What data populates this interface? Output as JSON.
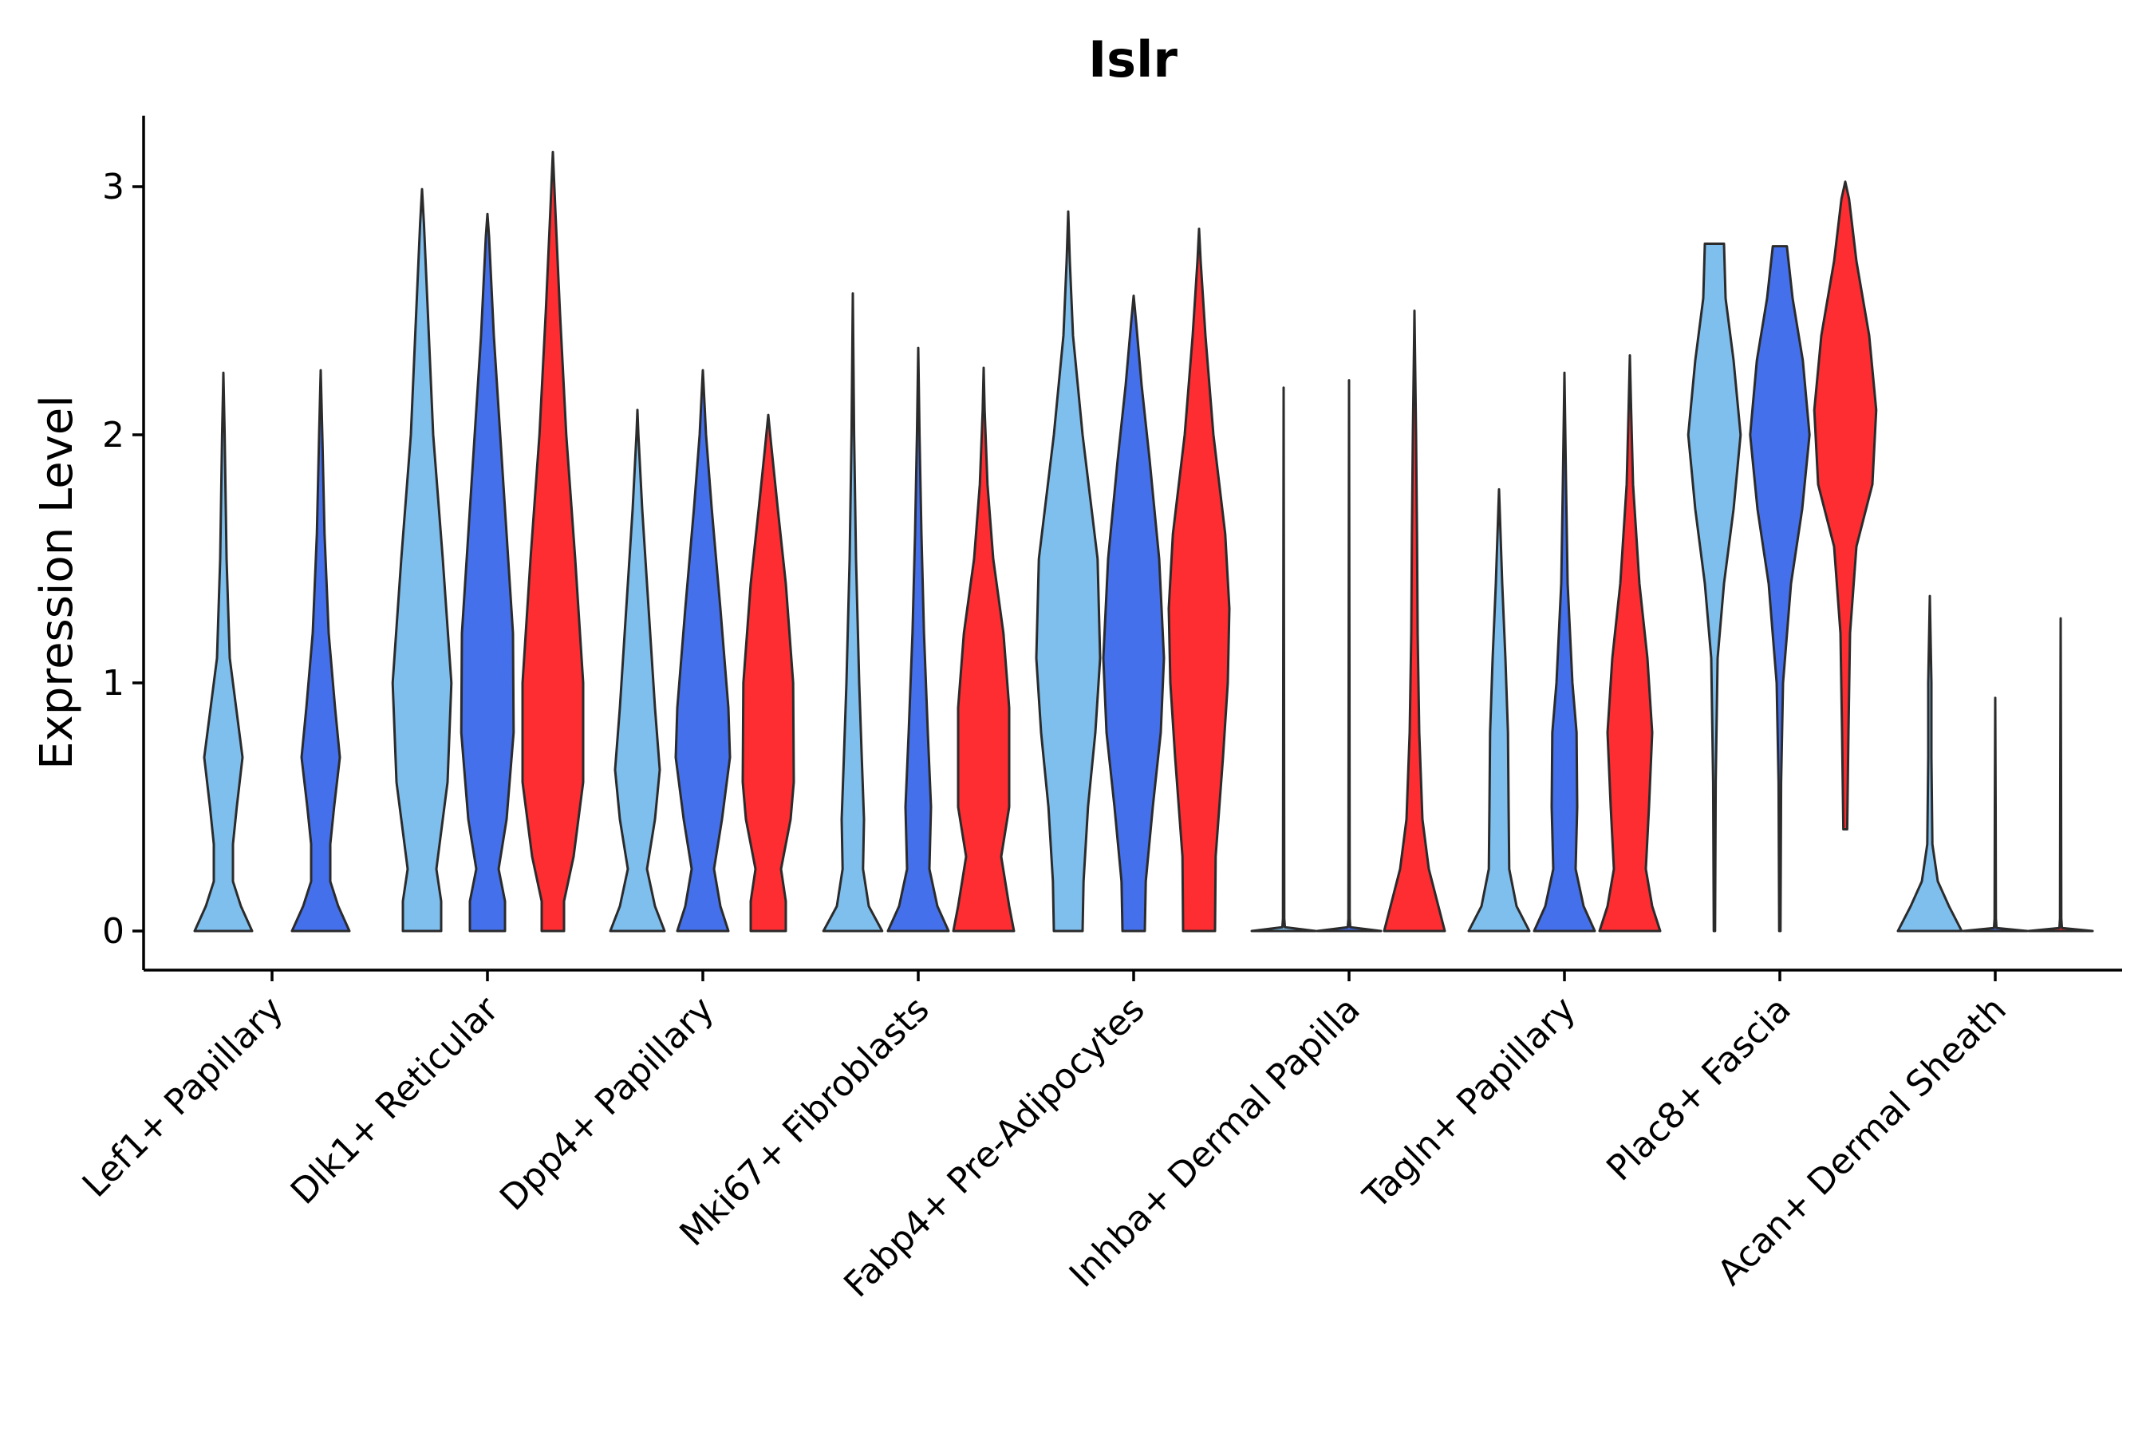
{
  "chart_data": {
    "type": "violin",
    "title": "Islr",
    "xlabel": "",
    "ylabel": "Expression Level",
    "ylim": [
      -0.16,
      3.3
    ],
    "yticks": [
      0,
      1,
      2,
      3
    ],
    "colors": {
      "group1": "#7fbfee",
      "group2": "#4570ec",
      "group3": "#fd2d32"
    },
    "categories": [
      "Lef1+ Papillary",
      "Dlk1+ Reticular",
      "Dpp4+ Papillary",
      "Mki67+ Fibroblasts",
      "Fabp4+ Pre-Adipocytes",
      "Inhba+ Dermal Papilla",
      "Tagln+ Papillary",
      "Plac8+ Fascia",
      "Acan+ Dermal Sheath"
    ],
    "violins": [
      {
        "category": "Lef1+ Papillary",
        "group": "group1",
        "min": 0,
        "max": 2.25,
        "profile": [
          [
            0,
            0.9
          ],
          [
            0.1,
            0.55
          ],
          [
            0.2,
            0.3
          ],
          [
            0.35,
            0.3
          ],
          [
            0.5,
            0.42
          ],
          [
            0.7,
            0.6
          ],
          [
            0.9,
            0.4
          ],
          [
            1.1,
            0.2
          ],
          [
            1.5,
            0.1
          ],
          [
            2.0,
            0.04
          ],
          [
            2.25,
            0
          ]
        ]
      },
      {
        "category": "Lef1+ Papillary",
        "group": "group2",
        "min": 0,
        "max": 2.26,
        "profile": [
          [
            0,
            0.9
          ],
          [
            0.1,
            0.55
          ],
          [
            0.2,
            0.3
          ],
          [
            0.35,
            0.3
          ],
          [
            0.5,
            0.42
          ],
          [
            0.7,
            0.6
          ],
          [
            0.9,
            0.45
          ],
          [
            1.2,
            0.25
          ],
          [
            1.6,
            0.12
          ],
          [
            2.0,
            0.05
          ],
          [
            2.26,
            0
          ]
        ]
      },
      {
        "category": "Dlk1+ Reticular",
        "group": "group1",
        "min": 0,
        "max": 2.99,
        "profile": [
          [
            0,
            0.6
          ],
          [
            0.12,
            0.6
          ],
          [
            0.25,
            0.45
          ],
          [
            0.4,
            0.6
          ],
          [
            0.6,
            0.8
          ],
          [
            1.0,
            0.92
          ],
          [
            1.5,
            0.65
          ],
          [
            2.0,
            0.35
          ],
          [
            2.5,
            0.18
          ],
          [
            2.85,
            0.06
          ],
          [
            2.99,
            0
          ]
        ]
      },
      {
        "category": "Dlk1+ Reticular",
        "group": "group2",
        "min": 0,
        "max": 2.89,
        "profile": [
          [
            0,
            0.55
          ],
          [
            0.12,
            0.55
          ],
          [
            0.25,
            0.35
          ],
          [
            0.45,
            0.6
          ],
          [
            0.8,
            0.82
          ],
          [
            1.2,
            0.8
          ],
          [
            1.6,
            0.6
          ],
          [
            2.0,
            0.4
          ],
          [
            2.4,
            0.2
          ],
          [
            2.8,
            0.05
          ],
          [
            2.89,
            0
          ]
        ]
      },
      {
        "category": "Dlk1+ Reticular",
        "group": "group3",
        "min": 0,
        "max": 3.14,
        "profile": [
          [
            0,
            0.35
          ],
          [
            0.12,
            0.35
          ],
          [
            0.3,
            0.65
          ],
          [
            0.6,
            0.95
          ],
          [
            1.0,
            0.95
          ],
          [
            1.5,
            0.7
          ],
          [
            2.0,
            0.42
          ],
          [
            2.5,
            0.22
          ],
          [
            2.9,
            0.08
          ],
          [
            3.14,
            0
          ]
        ]
      },
      {
        "category": "Dpp4+ Papillary",
        "group": "group1",
        "min": 0,
        "max": 2.1,
        "profile": [
          [
            0,
            0.85
          ],
          [
            0.1,
            0.55
          ],
          [
            0.25,
            0.3
          ],
          [
            0.45,
            0.55
          ],
          [
            0.65,
            0.7
          ],
          [
            0.9,
            0.55
          ],
          [
            1.3,
            0.35
          ],
          [
            1.7,
            0.15
          ],
          [
            2.0,
            0.03
          ],
          [
            2.1,
            0
          ]
        ]
      },
      {
        "category": "Dpp4+ Papillary",
        "group": "group2",
        "min": 0,
        "max": 2.26,
        "profile": [
          [
            0,
            0.8
          ],
          [
            0.1,
            0.55
          ],
          [
            0.25,
            0.35
          ],
          [
            0.45,
            0.6
          ],
          [
            0.7,
            0.85
          ],
          [
            0.9,
            0.8
          ],
          [
            1.3,
            0.55
          ],
          [
            1.7,
            0.28
          ],
          [
            2.0,
            0.1
          ],
          [
            2.26,
            0
          ]
        ]
      },
      {
        "category": "Dpp4+ Papillary",
        "group": "group3",
        "min": 0,
        "max": 2.08,
        "profile": [
          [
            0,
            0.55
          ],
          [
            0.12,
            0.55
          ],
          [
            0.25,
            0.4
          ],
          [
            0.45,
            0.7
          ],
          [
            0.6,
            0.8
          ],
          [
            1.0,
            0.78
          ],
          [
            1.4,
            0.55
          ],
          [
            1.7,
            0.3
          ],
          [
            1.95,
            0.1
          ],
          [
            2.08,
            0
          ]
        ]
      },
      {
        "category": "Mki67+ Fibroblasts",
        "group": "group1",
        "min": 0,
        "max": 2.57,
        "profile": [
          [
            0,
            0.92
          ],
          [
            0.1,
            0.5
          ],
          [
            0.25,
            0.32
          ],
          [
            0.45,
            0.35
          ],
          [
            0.7,
            0.28
          ],
          [
            1.0,
            0.2
          ],
          [
            1.5,
            0.1
          ],
          [
            2.0,
            0.04
          ],
          [
            2.57,
            0
          ]
        ]
      },
      {
        "category": "Mki67+ Fibroblasts",
        "group": "group2",
        "min": 0,
        "max": 2.35,
        "profile": [
          [
            0,
            0.95
          ],
          [
            0.1,
            0.6
          ],
          [
            0.25,
            0.35
          ],
          [
            0.5,
            0.4
          ],
          [
            0.8,
            0.3
          ],
          [
            1.2,
            0.18
          ],
          [
            1.6,
            0.1
          ],
          [
            2.0,
            0.04
          ],
          [
            2.35,
            0
          ]
        ]
      },
      {
        "category": "Mki67+ Fibroblasts",
        "group": "group3",
        "min": 0,
        "max": 2.27,
        "profile": [
          [
            0,
            0.95
          ],
          [
            0.1,
            0.8
          ],
          [
            0.3,
            0.55
          ],
          [
            0.5,
            0.8
          ],
          [
            0.9,
            0.8
          ],
          [
            1.2,
            0.62
          ],
          [
            1.5,
            0.3
          ],
          [
            1.8,
            0.12
          ],
          [
            2.1,
            0.03
          ],
          [
            2.27,
            0
          ]
        ]
      },
      {
        "category": "Fabp4+ Pre-Adipocytes",
        "group": "group1",
        "min": 0,
        "max": 2.9,
        "profile": [
          [
            0,
            0.45
          ],
          [
            0.2,
            0.48
          ],
          [
            0.5,
            0.62
          ],
          [
            0.8,
            0.85
          ],
          [
            1.1,
            1.0
          ],
          [
            1.5,
            0.92
          ],
          [
            2.0,
            0.45
          ],
          [
            2.4,
            0.15
          ],
          [
            2.7,
            0.05
          ],
          [
            2.9,
            0
          ]
        ]
      },
      {
        "category": "Fabp4+ Pre-Adipocytes",
        "group": "group2",
        "min": 0,
        "max": 2.56,
        "profile": [
          [
            0,
            0.35
          ],
          [
            0.2,
            0.38
          ],
          [
            0.5,
            0.6
          ],
          [
            0.8,
            0.85
          ],
          [
            1.1,
            0.95
          ],
          [
            1.5,
            0.8
          ],
          [
            1.9,
            0.5
          ],
          [
            2.2,
            0.25
          ],
          [
            2.45,
            0.08
          ],
          [
            2.56,
            0
          ]
        ]
      },
      {
        "category": "Fabp4+ Pre-Adipocytes",
        "group": "group3",
        "min": 0,
        "max": 2.83,
        "profile": [
          [
            0,
            0.5
          ],
          [
            0.3,
            0.52
          ],
          [
            0.7,
            0.75
          ],
          [
            1.0,
            0.9
          ],
          [
            1.3,
            0.95
          ],
          [
            1.6,
            0.82
          ],
          [
            2.0,
            0.45
          ],
          [
            2.4,
            0.2
          ],
          [
            2.7,
            0.05
          ],
          [
            2.83,
            0
          ]
        ]
      },
      {
        "category": "Inhba+ Dermal Papilla",
        "group": "group1",
        "min": 0,
        "max": 2.19,
        "profile": [
          [
            0,
            1.0
          ],
          [
            0.015,
            0.04
          ],
          [
            0.05,
            0.02
          ],
          [
            1.0,
            0.012
          ],
          [
            2.19,
            0
          ]
        ]
      },
      {
        "category": "Inhba+ Dermal Papilla",
        "group": "group2",
        "min": 0,
        "max": 2.22,
        "profile": [
          [
            0,
            1.0
          ],
          [
            0.015,
            0.04
          ],
          [
            0.05,
            0.02
          ],
          [
            1.0,
            0.012
          ],
          [
            2.22,
            0
          ]
        ]
      },
      {
        "category": "Inhba+ Dermal Papilla",
        "group": "group3",
        "min": 0,
        "max": 2.5,
        "profile": [
          [
            0,
            0.95
          ],
          [
            0.1,
            0.75
          ],
          [
            0.25,
            0.45
          ],
          [
            0.45,
            0.25
          ],
          [
            0.8,
            0.15
          ],
          [
            1.2,
            0.1
          ],
          [
            1.6,
            0.08
          ],
          [
            2.0,
            0.05
          ],
          [
            2.5,
            0
          ]
        ]
      },
      {
        "category": "Tagln+ Papillary",
        "group": "group1",
        "min": 0,
        "max": 1.78,
        "profile": [
          [
            0,
            0.95
          ],
          [
            0.1,
            0.55
          ],
          [
            0.25,
            0.32
          ],
          [
            0.5,
            0.3
          ],
          [
            0.8,
            0.28
          ],
          [
            1.1,
            0.2
          ],
          [
            1.4,
            0.1
          ],
          [
            1.78,
            0
          ]
        ]
      },
      {
        "category": "Tagln+ Papillary",
        "group": "group2",
        "min": 0,
        "max": 2.25,
        "profile": [
          [
            0,
            0.95
          ],
          [
            0.1,
            0.6
          ],
          [
            0.25,
            0.35
          ],
          [
            0.5,
            0.4
          ],
          [
            0.8,
            0.38
          ],
          [
            1.0,
            0.25
          ],
          [
            1.4,
            0.1
          ],
          [
            1.8,
            0.05
          ],
          [
            2.25,
            0
          ]
        ]
      },
      {
        "category": "Tagln+ Papillary",
        "group": "group3",
        "min": 0,
        "max": 2.32,
        "profile": [
          [
            0,
            0.95
          ],
          [
            0.1,
            0.7
          ],
          [
            0.25,
            0.5
          ],
          [
            0.5,
            0.6
          ],
          [
            0.8,
            0.7
          ],
          [
            1.1,
            0.55
          ],
          [
            1.4,
            0.3
          ],
          [
            1.8,
            0.1
          ],
          [
            2.1,
            0.04
          ],
          [
            2.32,
            0
          ]
        ]
      },
      {
        "category": "Plac8+ Fascia",
        "group": "group1",
        "min": 0,
        "max": 2.77,
        "profile": [
          [
            0,
            0.02
          ],
          [
            0.6,
            0.04
          ],
          [
            1.1,
            0.1
          ],
          [
            1.4,
            0.3
          ],
          [
            1.7,
            0.6
          ],
          [
            2.0,
            0.82
          ],
          [
            2.3,
            0.6
          ],
          [
            2.55,
            0.35
          ],
          [
            2.77,
            0.3
          ]
        ]
      },
      {
        "category": "Plac8+ Fascia",
        "group": "group2",
        "min": 0,
        "max": 2.76,
        "profile": [
          [
            0,
            0.02
          ],
          [
            0.6,
            0.04
          ],
          [
            1.0,
            0.1
          ],
          [
            1.4,
            0.35
          ],
          [
            1.7,
            0.7
          ],
          [
            2.0,
            0.93
          ],
          [
            2.3,
            0.72
          ],
          [
            2.55,
            0.4
          ],
          [
            2.76,
            0.22
          ]
        ]
      },
      {
        "category": "Plac8+ Fascia",
        "group": "group3",
        "min": 0.41,
        "max": 3.02,
        "profile": [
          [
            0.41,
            0.06
          ],
          [
            0.8,
            0.1
          ],
          [
            1.2,
            0.15
          ],
          [
            1.55,
            0.35
          ],
          [
            1.8,
            0.85
          ],
          [
            2.1,
            0.97
          ],
          [
            2.4,
            0.75
          ],
          [
            2.7,
            0.35
          ],
          [
            2.95,
            0.12
          ],
          [
            3.02,
            0
          ]
        ]
      },
      {
        "category": "Acan+ Dermal Sheath",
        "group": "group1",
        "min": 0,
        "max": 1.35,
        "profile": [
          [
            0,
            1.0
          ],
          [
            0.1,
            0.6
          ],
          [
            0.2,
            0.25
          ],
          [
            0.35,
            0.08
          ],
          [
            0.7,
            0.05
          ],
          [
            1.0,
            0.05
          ],
          [
            1.35,
            0
          ]
        ]
      },
      {
        "category": "Acan+ Dermal Sheath",
        "group": "group2",
        "min": 0,
        "max": 0.94,
        "profile": [
          [
            0,
            1.0
          ],
          [
            0.012,
            0.04
          ],
          [
            0.05,
            0.02
          ],
          [
            0.5,
            0.012
          ],
          [
            0.94,
            0
          ]
        ]
      },
      {
        "category": "Acan+ Dermal Sheath",
        "group": "group3",
        "min": 0,
        "max": 1.26,
        "profile": [
          [
            0,
            1.0
          ],
          [
            0.012,
            0.04
          ],
          [
            0.05,
            0.02
          ],
          [
            0.6,
            0.012
          ],
          [
            1.26,
            0
          ]
        ]
      }
    ]
  }
}
